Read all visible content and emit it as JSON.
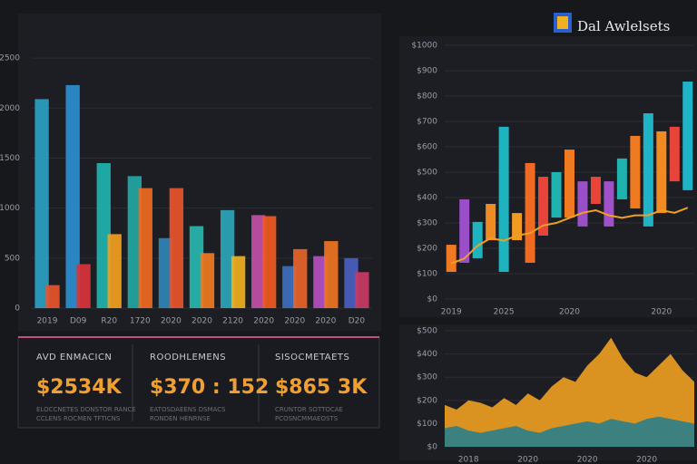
{
  "header": {
    "title": "Dal Awlelsets"
  },
  "chart_data": [
    {
      "type": "bar",
      "categories": [
        "2019",
        "D09",
        "R20",
        "1720",
        "2020",
        "2020",
        "2120",
        "2020",
        "2020",
        "2020",
        "D20"
      ],
      "series": [
        {
          "colors": [
            "#2a9fc4",
            "#2b8fd0",
            "#1fb3b0",
            "#23a7a4",
            "#2e86b8",
            "#27b6b0",
            "#2aa6b8",
            "#c24fa8",
            "#3d6fc0",
            "#b44fc0",
            "#4a60c0"
          ],
          "values": [
            2090,
            2230,
            1450,
            1320,
            700,
            820,
            980,
            930,
            420,
            520,
            500
          ]
        },
        {
          "colors": [
            "#e8542c",
            "#d8343c",
            "#f0a020",
            "#f06a20",
            "#e9542a",
            "#f07a22",
            "#f0b020",
            "#f05a22",
            "#e8642a",
            "#f07422",
            "#c83a66"
          ],
          "values": [
            230,
            440,
            740,
            1200,
            1200,
            550,
            520,
            920,
            590,
            670,
            360
          ]
        }
      ],
      "ylim": [
        0,
        2900
      ],
      "yticks": [
        0,
        500,
        1000,
        1500,
        2000,
        2500
      ],
      "grid": true
    },
    {
      "type": "candlestick",
      "categories": [
        "2019",
        null,
        null,
        null,
        "2025",
        null,
        null,
        null,
        null,
        "2020",
        null,
        null,
        null,
        null,
        null,
        null,
        "2020",
        null,
        null
      ],
      "open": [
        107,
        143,
        161,
        232,
        107,
        232,
        143,
        250,
        321,
        321,
        286,
        375,
        286,
        393,
        357,
        286,
        339,
        464,
        429
      ],
      "close": [
        214,
        393,
        304,
        375,
        679,
        339,
        536,
        482,
        500,
        589,
        464,
        482,
        464,
        554,
        643,
        732,
        661,
        679,
        857
      ],
      "colors": [
        "#f07a22",
        "#9a4fc8",
        "#1fb3c0",
        "#f08a22",
        "#1fb3c0",
        "#f09a22",
        "#f06a22",
        "#e8443a",
        "#1fb3b0",
        "#f07a22",
        "#9a4fc8",
        "#e8443a",
        "#a050c8",
        "#1fb3b0",
        "#f07a22",
        "#1fb3c8",
        "#f08a22",
        "#e8443a",
        "#1fb3c8"
      ],
      "line": {
        "color": "#f0a020",
        "values": [
          140,
          160,
          210,
          240,
          230,
          250,
          260,
          290,
          300,
          320,
          340,
          350,
          330,
          320,
          330,
          330,
          350,
          340,
          360
        ]
      },
      "ylim": [
        0,
        1000
      ],
      "yticks": [
        {
          "value": 0,
          "label": "$0"
        },
        {
          "value": 100,
          "label": "$100"
        },
        {
          "value": 200,
          "label": "$200"
        },
        {
          "value": 300,
          "label": "$300"
        },
        {
          "value": 400,
          "label": "$400"
        },
        {
          "value": 500,
          "label": "$500"
        },
        {
          "value": 600,
          "label": "$600"
        },
        {
          "value": 700,
          "label": "$700"
        },
        {
          "value": 800,
          "label": "$800"
        },
        {
          "value": 900,
          "label": "$900"
        },
        {
          "value": 1000,
          "label": "$1000"
        }
      ],
      "grid": true
    },
    {
      "type": "area",
      "categories": [
        null,
        null,
        "2018",
        null,
        null,
        null,
        null,
        "2020",
        null,
        null,
        null,
        null,
        "2020",
        null,
        null,
        null,
        null,
        "2020",
        null,
        null,
        null,
        null
      ],
      "series": [
        {
          "color": "#f0a020",
          "values": [
            180,
            160,
            200,
            190,
            170,
            210,
            180,
            230,
            200,
            260,
            300,
            280,
            350,
            400,
            470,
            380,
            320,
            300,
            350,
            400,
            330,
            280
          ]
        },
        {
          "color": "#2a7f8a",
          "values": [
            80,
            90,
            70,
            60,
            70,
            80,
            90,
            70,
            60,
            80,
            90,
            100,
            110,
            100,
            120,
            110,
            100,
            120,
            130,
            120,
            110,
            100
          ]
        }
      ],
      "ylim": [
        0,
        500
      ],
      "yticks": [
        {
          "value": 0,
          "label": "$0"
        },
        {
          "value": 100,
          "label": "$100"
        },
        {
          "value": 200,
          "label": "$200"
        },
        {
          "value": 300,
          "label": "$300"
        },
        {
          "value": 400,
          "label": "$400"
        },
        {
          "value": 500,
          "label": "$500"
        }
      ],
      "grid": true
    }
  ],
  "kpis": [
    {
      "title": "AVD ENMACICN",
      "value": "$2534K",
      "lines": [
        "ELOCCNETES DONSTOR RANCE",
        "CCLENS ROCMEN TFTICNS"
      ]
    },
    {
      "title": "ROODHLEMENS",
      "value": "$370 : 152",
      "lines": [
        "EATOSDAEENS DSMACS",
        "RONDEN HENRNSE"
      ]
    },
    {
      "title": "SISOCMETAETS",
      "value": "$865 3K",
      "lines": [
        "CRUNTOR SOTTOCAE",
        "PCOSNCMMAEOSTS"
      ]
    }
  ]
}
